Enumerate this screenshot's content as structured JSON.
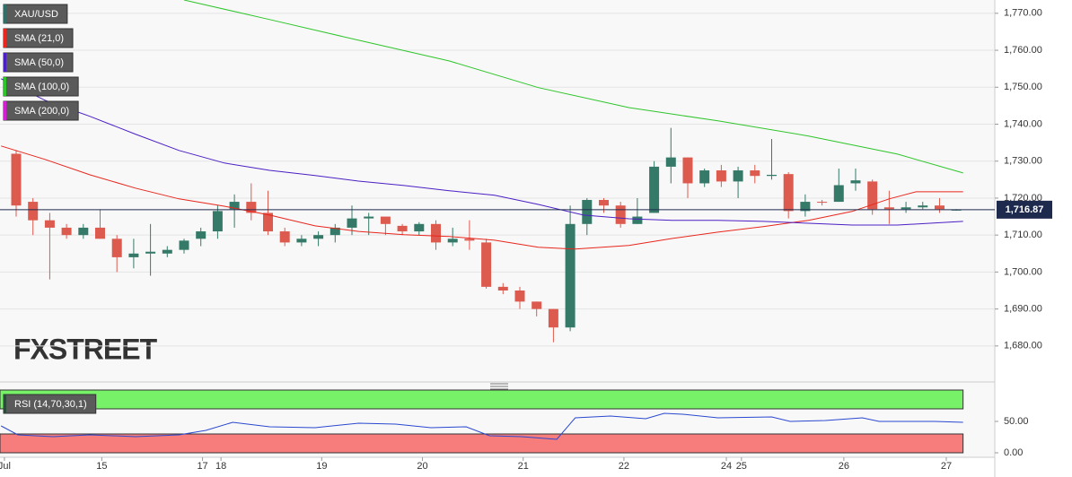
{
  "chart_data": [
    {
      "type": "candlestick",
      "title": "XAU/USD",
      "watermark": "FXSTREET",
      "x": [
        0,
        1,
        2,
        3,
        4,
        5,
        6,
        7,
        8,
        9,
        10,
        11,
        12,
        13,
        14,
        15,
        16,
        17,
        18,
        19,
        20,
        21,
        22,
        23,
        24,
        25,
        26,
        27,
        28,
        29,
        30,
        31,
        32,
        33,
        34,
        35,
        36,
        37,
        38,
        39,
        40,
        41,
        42,
        43,
        44,
        45,
        46,
        47,
        48,
        49,
        50,
        51,
        52,
        53,
        54,
        55,
        56
      ],
      "open": [
        1732,
        1719,
        1714,
        1712,
        1710,
        1712,
        1709,
        1704,
        1705,
        1705,
        1706,
        1709,
        1711,
        1717,
        1719,
        1716,
        1711,
        1708,
        1709,
        1710,
        1712,
        1714.5,
        1715,
        1712.5,
        1711,
        1713,
        1708,
        1709,
        1708,
        1696,
        1695,
        1692,
        1690,
        1685,
        1713,
        1719.5,
        1718,
        1713,
        1716,
        1728.5,
        1731,
        1724,
        1727.5,
        1724.5,
        1727.5,
        1726,
        1726.5,
        1716.5,
        1719,
        1719,
        1724,
        1724.5,
        1717.5,
        1717,
        1717.5,
        1718,
        1716.8
      ],
      "high": [
        1733,
        1720,
        1716,
        1713,
        1713,
        1717,
        1710,
        1709,
        1713,
        1707,
        1709,
        1712,
        1718,
        1721,
        1724,
        1722,
        1712,
        1710,
        1711,
        1713,
        1718,
        1716,
        1715,
        1713,
        1713.5,
        1714,
        1712,
        1714,
        1709,
        1697,
        1696,
        1692,
        1690,
        1718,
        1720,
        1720,
        1719,
        1720,
        1730,
        1739,
        1731,
        1728,
        1729,
        1728.5,
        1729,
        1736,
        1727,
        1721,
        1719.5,
        1728,
        1728,
        1725,
        1722,
        1719,
        1719,
        1720,
        1717
      ],
      "low": [
        1715,
        1710,
        1698,
        1709,
        1709,
        1709,
        1700,
        1701,
        1699,
        1704,
        1705,
        1707,
        1709,
        1712,
        1714,
        1710,
        1707,
        1707,
        1707,
        1708,
        1710,
        1710,
        1710,
        1710,
        1710,
        1706,
        1707,
        1706,
        1695.5,
        1694,
        1690,
        1688,
        1681,
        1684,
        1710,
        1716,
        1712,
        1713,
        1716,
        1724,
        1720,
        1723,
        1723,
        1720,
        1724,
        1725,
        1714.5,
        1715,
        1718,
        1719,
        1722,
        1715.5,
        1713,
        1716,
        1717,
        1716,
        1716.6
      ],
      "close": [
        1718,
        1714,
        1712,
        1710,
        1712,
        1709,
        1704,
        1705,
        1705.5,
        1706,
        1708.5,
        1711,
        1716.5,
        1719,
        1716,
        1711,
        1708,
        1709,
        1710,
        1712,
        1714.5,
        1715,
        1713,
        1711,
        1713,
        1708,
        1709,
        1708.5,
        1696,
        1695,
        1692,
        1690,
        1685,
        1713,
        1719.5,
        1718,
        1713,
        1715,
        1728.5,
        1731,
        1724,
        1727.5,
        1724.5,
        1727.5,
        1726,
        1726.3,
        1716.5,
        1719,
        1718.8,
        1723.5,
        1724.8,
        1717,
        1717,
        1717.5,
        1718,
        1717,
        1716.87
      ],
      "up_color": "#357a68",
      "down_color": "#dd5a4e",
      "title_color": "#2f6f68",
      "series": [
        {
          "name": "SMA (21,0)",
          "color": "#e8261c",
          "x": [
            -0.9,
            1.7,
            4.4,
            7.1,
            9.7,
            12.4,
            15.1,
            17.8,
            20.4,
            23.1,
            25.8,
            28.5,
            31.1,
            33.3,
            36.5,
            39.1,
            41.8,
            44.5,
            47.2,
            49.8,
            52.0,
            53.6,
            56.4
          ],
          "values": [
            1734.1,
            1730.5,
            1726.3,
            1722.7,
            1719.8,
            1717.8,
            1715.4,
            1712.5,
            1711.0,
            1710.1,
            1709.6,
            1708.6,
            1706.7,
            1706.2,
            1707.2,
            1709.1,
            1710.8,
            1712.3,
            1714.0,
            1716.4,
            1719.8,
            1721.7,
            1721.7
          ]
        },
        {
          "name": "SMA (50,0)",
          "color": "#4b1fc4",
          "x": [
            -0.9,
            1.7,
            4.4,
            7.1,
            9.7,
            12.4,
            15.1,
            17.8,
            20.4,
            23.1,
            25.8,
            28.5,
            31.1,
            33.8,
            36.5,
            39.1,
            41.8,
            44.5,
            47.2,
            49.8,
            52.5,
            56.4
          ],
          "values": [
            1752.3,
            1746.5,
            1742.1,
            1737.3,
            1732.9,
            1729.5,
            1727.5,
            1726.1,
            1724.6,
            1723.4,
            1722.0,
            1720.8,
            1718.3,
            1715.4,
            1714.4,
            1714.0,
            1714.0,
            1713.7,
            1713.2,
            1712.7,
            1712.7,
            1713.7
          ]
        },
        {
          "name": "SMA (100,0)",
          "color": "#2ec52a",
          "x": [
            10.0,
            15.1,
            20.4,
            25.8,
            31.1,
            36.5,
            41.8,
            47.2,
            52.5,
            56.4
          ],
          "values": [
            1773.6,
            1768.3,
            1762.7,
            1757.1,
            1749.9,
            1744.5,
            1740.9,
            1736.8,
            1731.9,
            1726.8
          ]
        },
        {
          "name": "SMA (200,0)",
          "color": "#d21fd2",
          "x": [],
          "values": []
        }
      ],
      "last_price": {
        "value": 1716.87,
        "label": "1,716.87"
      },
      "last_price_color": "#1d2a4d",
      "xlim": [
        -0.963,
        58.29
      ],
      "xticks": [
        {
          "value": -0.7,
          "label": "Jul"
        },
        {
          "value": 5.1,
          "label": "15"
        },
        {
          "value": 11.1,
          "label": "17"
        },
        {
          "value": 12.2,
          "label": "18"
        },
        {
          "value": 18.2,
          "label": "19"
        },
        {
          "value": 24.2,
          "label": "20"
        },
        {
          "value": 30.2,
          "label": "21"
        },
        {
          "value": 36.2,
          "label": "22"
        },
        {
          "value": 42.3,
          "label": "24"
        },
        {
          "value": 43.2,
          "label": "25"
        },
        {
          "value": 49.3,
          "label": "26"
        },
        {
          "value": 55.4,
          "label": "27"
        }
      ],
      "ylim": [
        1670.5,
        1773.6
      ],
      "yticks": [
        {
          "value": 1680,
          "label": "1,680.00"
        },
        {
          "value": 1690,
          "label": "1,690.00"
        },
        {
          "value": 1700,
          "label": "1,700.00"
        },
        {
          "value": 1710,
          "label": "1,710.00"
        },
        {
          "value": 1720,
          "label": "1,720.00"
        },
        {
          "value": 1730,
          "label": "1,730.00"
        },
        {
          "value": 1740,
          "label": "1,740.00"
        },
        {
          "value": 1750,
          "label": "1,750.00"
        },
        {
          "value": 1760,
          "label": "1,760.00"
        },
        {
          "value": 1770,
          "label": "1,770.00"
        }
      ],
      "grid": true
    },
    {
      "type": "line",
      "title": "RSI (14,70,30,1)",
      "series": [
        {
          "name": "RSI",
          "color": "#2a48d0",
          "x": [
            -0.9,
            0.1,
            2.2,
            4.4,
            7.1,
            9.7,
            11.3,
            12.9,
            15.1,
            17.8,
            20.4,
            22.6,
            24.7,
            26.8,
            28.2,
            30.1,
            32.2,
            33.3,
            35.4,
            37.5,
            38.6,
            39.7,
            41.8,
            45.0,
            46.1,
            48.2,
            50.4,
            51.4,
            54.7,
            56.4
          ],
          "values": [
            42.9,
            28.6,
            25.7,
            28.6,
            25.7,
            28.6,
            35.7,
            48.6,
            41.4,
            40,
            47.1,
            45.7,
            40,
            41.4,
            27.1,
            25.7,
            21.4,
            55.7,
            58.6,
            54.3,
            62.9,
            61.4,
            55.7,
            57.1,
            50,
            51.4,
            55.7,
            50,
            50,
            48.6
          ]
        }
      ],
      "upper": 70,
      "lower": 30,
      "upper_color": "#77f268",
      "lower_color": "#f77c7c",
      "xlim": [
        -0.963,
        58.29
      ],
      "ylim": [
        0,
        100
      ],
      "yticks": [
        {
          "value": 0,
          "label": "0.00"
        },
        {
          "value": 50,
          "label": "50.00"
        }
      ]
    }
  ]
}
